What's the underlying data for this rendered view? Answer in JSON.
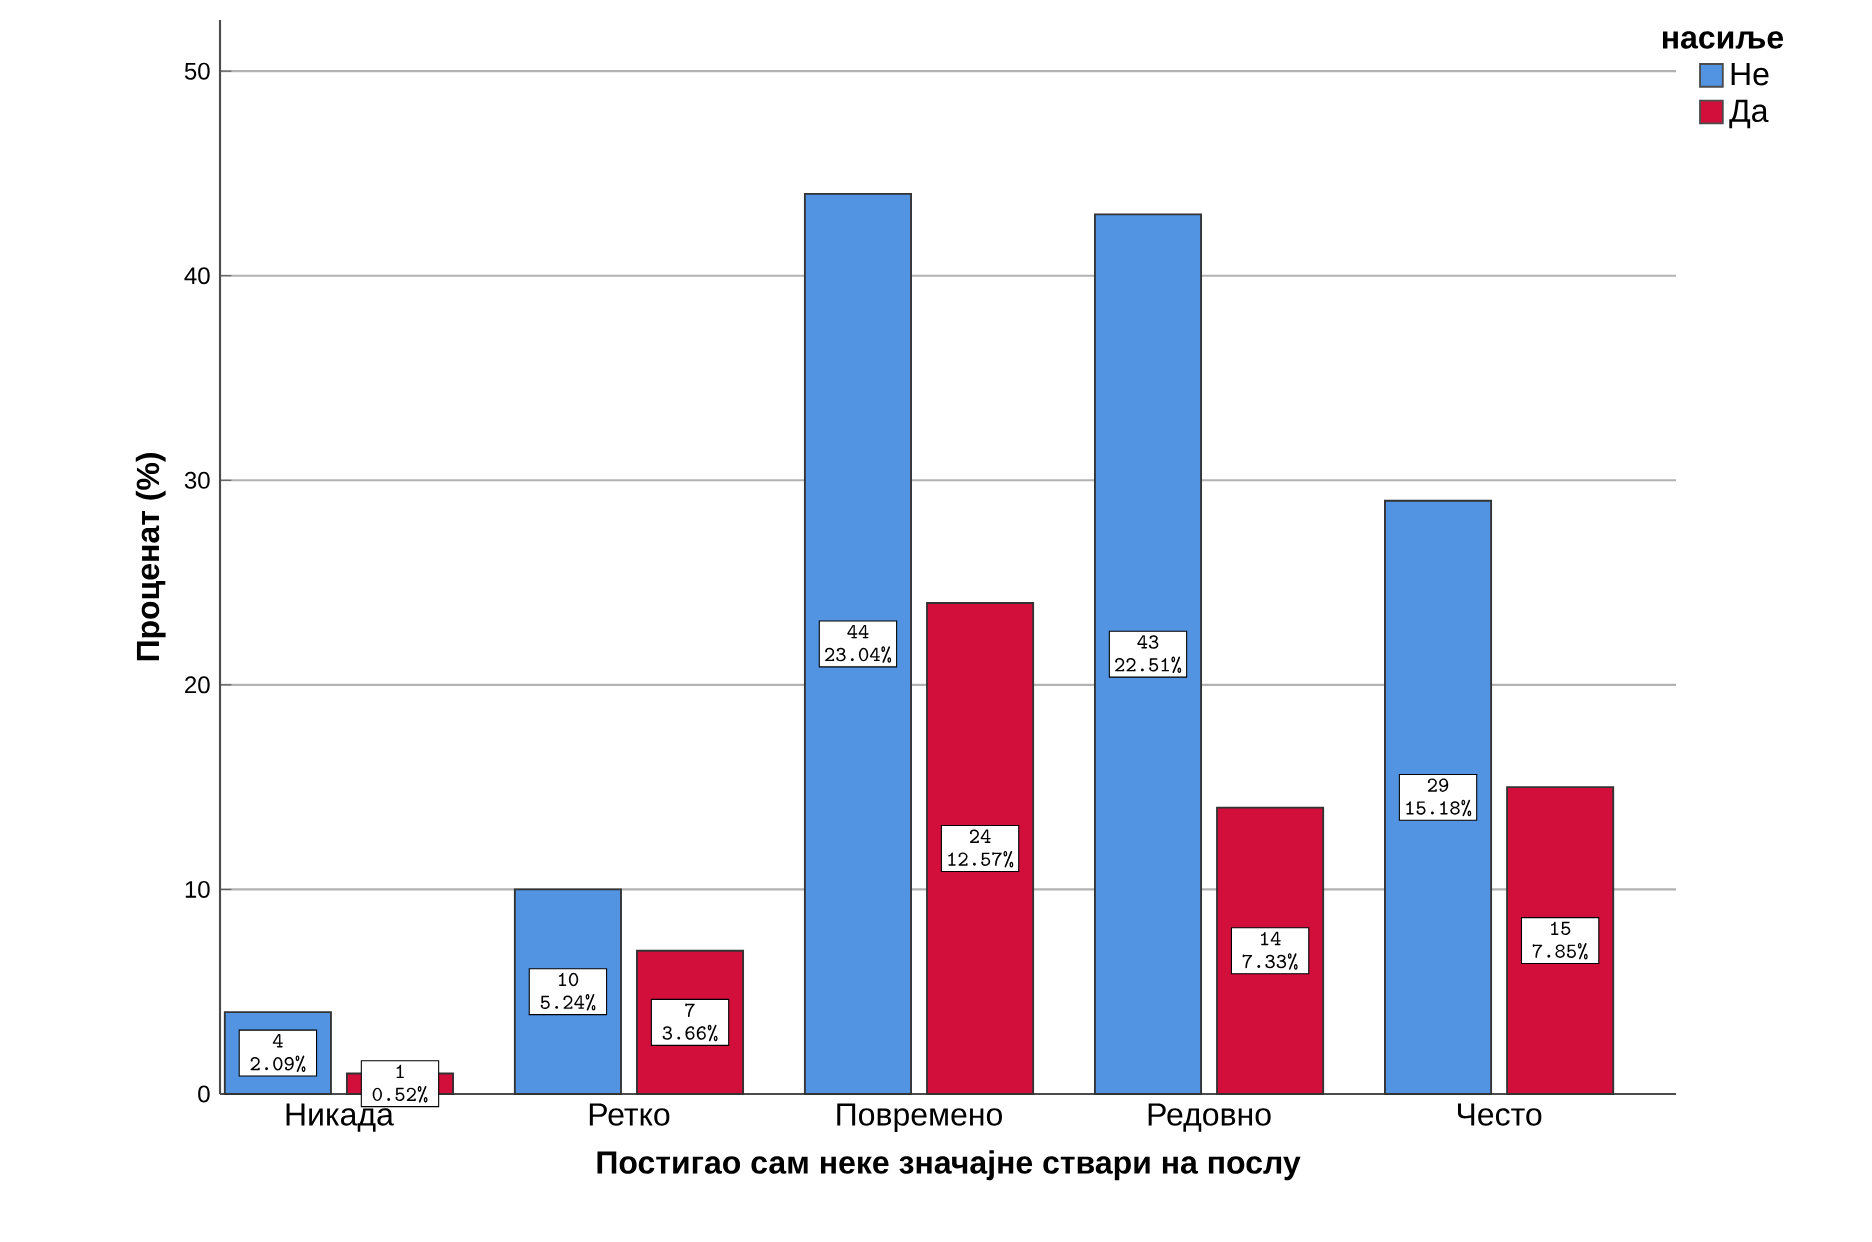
{
  "chart_data": {
    "type": "bar",
    "xlabel": "Постигао сам неке значајне ствари на послу",
    "ylabel": "Проценат (%)",
    "legend_title": "насиље",
    "categories": [
      "Никада",
      "Ретко",
      "Повремено",
      "Редовно",
      "Често"
    ],
    "series": [
      {
        "name": "Не",
        "color": "#5293e2",
        "values": [
          4,
          10,
          44,
          43,
          29
        ],
        "value_labels": [
          "4 2.09%",
          "10 5.24%",
          "44 23.04%",
          "43 22.51%",
          "29 15.18%"
        ]
      },
      {
        "name": "Да",
        "color": "#d20e3b",
        "values": [
          1,
          7,
          24,
          14,
          15
        ],
        "value_labels": [
          "1 0.52%",
          "7 3.66%",
          "24 12.57%",
          "14 7.33%",
          "15 7.85%"
        ]
      }
    ],
    "ylim": [
      0,
      52.5
    ],
    "yticks": [
      0,
      10,
      20,
      30,
      40,
      50
    ],
    "grid": "y",
    "legend": "top right"
  }
}
